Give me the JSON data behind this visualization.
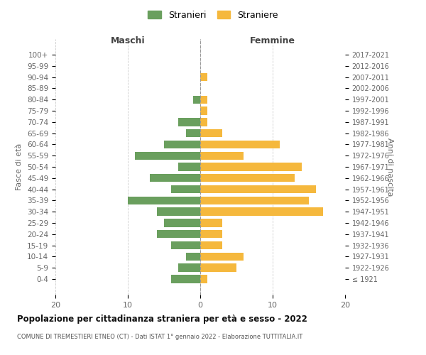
{
  "age_groups": [
    "100+",
    "95-99",
    "90-94",
    "85-89",
    "80-84",
    "75-79",
    "70-74",
    "65-69",
    "60-64",
    "55-59",
    "50-54",
    "45-49",
    "40-44",
    "35-39",
    "30-34",
    "25-29",
    "20-24",
    "15-19",
    "10-14",
    "5-9",
    "0-4"
  ],
  "birth_years": [
    "≤ 1921",
    "1922-1926",
    "1927-1931",
    "1932-1936",
    "1937-1941",
    "1942-1946",
    "1947-1951",
    "1952-1956",
    "1957-1961",
    "1962-1966",
    "1967-1971",
    "1972-1976",
    "1977-1981",
    "1982-1986",
    "1987-1991",
    "1992-1996",
    "1997-2001",
    "2002-2006",
    "2007-2011",
    "2012-2016",
    "2017-2021"
  ],
  "maschi": [
    0,
    0,
    0,
    0,
    1,
    0,
    3,
    2,
    5,
    9,
    3,
    7,
    4,
    10,
    6,
    5,
    6,
    4,
    2,
    3,
    4
  ],
  "femmine": [
    0,
    0,
    1,
    0,
    1,
    1,
    1,
    3,
    11,
    6,
    14,
    13,
    16,
    15,
    17,
    3,
    3,
    3,
    6,
    5,
    1
  ],
  "color_maschi": "#6a9f5e",
  "color_femmine": "#f5b83d",
  "title": "Popolazione per cittadinanza straniera per età e sesso - 2022",
  "subtitle": "COMUNE DI TREMESTIERI ETNEO (CT) - Dati ISTAT 1° gennaio 2022 - Elaborazione TUTTITALIA.IT",
  "xlabel_left": "Maschi",
  "xlabel_right": "Femmine",
  "ylabel_left": "Fasce di età",
  "ylabel_right": "Anni di nascita",
  "legend_maschi": "Stranieri",
  "legend_femmine": "Straniere",
  "xlim": 20,
  "background_color": "#ffffff",
  "grid_color": "#cccccc"
}
